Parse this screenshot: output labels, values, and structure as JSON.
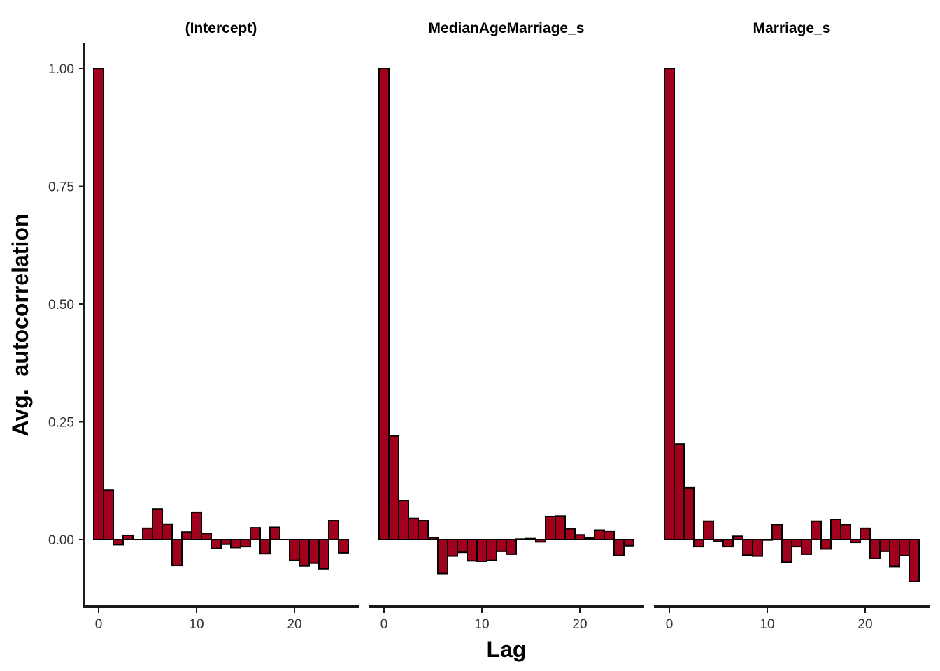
{
  "chart_data": {
    "type": "bar",
    "xlabel": "Lag",
    "ylabel": "Avg.  autocorrelation",
    "ylim": [
      -0.145,
      1.055
    ],
    "xlim": [
      -1.5,
      26.5
    ],
    "y_ticks": [
      0.0,
      0.25,
      0.5,
      0.75,
      1.0
    ],
    "y_tick_labels": [
      "0.00",
      "0.25",
      "0.50",
      "0.75",
      "1.00"
    ],
    "x_ticks": [
      0,
      10,
      20
    ],
    "x_tick_labels": [
      "0",
      "10",
      "20"
    ],
    "grid": false,
    "legend": "none",
    "colors": {
      "bar_fill": "#a1001c",
      "bar_stroke": "#000000",
      "axis": "#1a1a1a"
    },
    "panels": [
      {
        "title": "(Intercept)",
        "lags": [
          0,
          1,
          2,
          3,
          4,
          5,
          6,
          7,
          8,
          9,
          10,
          11,
          12,
          13,
          14,
          15,
          16,
          17,
          18,
          19,
          20,
          21,
          22,
          23,
          24,
          25
        ],
        "values": [
          1.0,
          0.105,
          -0.011,
          0.009,
          0.0,
          0.024,
          0.065,
          0.033,
          -0.055,
          0.016,
          0.058,
          0.013,
          -0.019,
          -0.01,
          -0.017,
          -0.015,
          0.025,
          -0.03,
          0.026,
          0.0,
          -0.044,
          -0.056,
          -0.05,
          -0.062,
          0.04,
          -0.028
        ]
      },
      {
        "title": "MedianAgeMarriage_s",
        "lags": [
          0,
          1,
          2,
          3,
          4,
          5,
          6,
          7,
          8,
          9,
          10,
          11,
          12,
          13,
          14,
          15,
          16,
          17,
          18,
          19,
          20,
          21,
          22,
          23,
          24,
          25
        ],
        "values": [
          1.0,
          0.22,
          0.083,
          0.045,
          0.04,
          0.004,
          -0.072,
          -0.035,
          -0.027,
          -0.045,
          -0.046,
          -0.044,
          -0.025,
          -0.031,
          0.001,
          0.002,
          -0.005,
          0.049,
          0.05,
          0.023,
          0.01,
          0.003,
          0.02,
          0.018,
          -0.034,
          -0.013
        ]
      },
      {
        "title": "Marriage_s",
        "lags": [
          0,
          1,
          2,
          3,
          4,
          5,
          6,
          7,
          8,
          9,
          10,
          11,
          12,
          13,
          14,
          15,
          16,
          17,
          18,
          19,
          20,
          21,
          22,
          23,
          24,
          25
        ],
        "values": [
          1.0,
          0.203,
          0.11,
          -0.015,
          0.039,
          -0.004,
          -0.015,
          0.007,
          -0.033,
          -0.035,
          -0.001,
          0.032,
          -0.048,
          -0.015,
          -0.031,
          0.039,
          -0.02,
          0.043,
          0.032,
          -0.006,
          0.024,
          -0.04,
          -0.025,
          -0.057,
          -0.034,
          -0.089
        ]
      }
    ]
  }
}
